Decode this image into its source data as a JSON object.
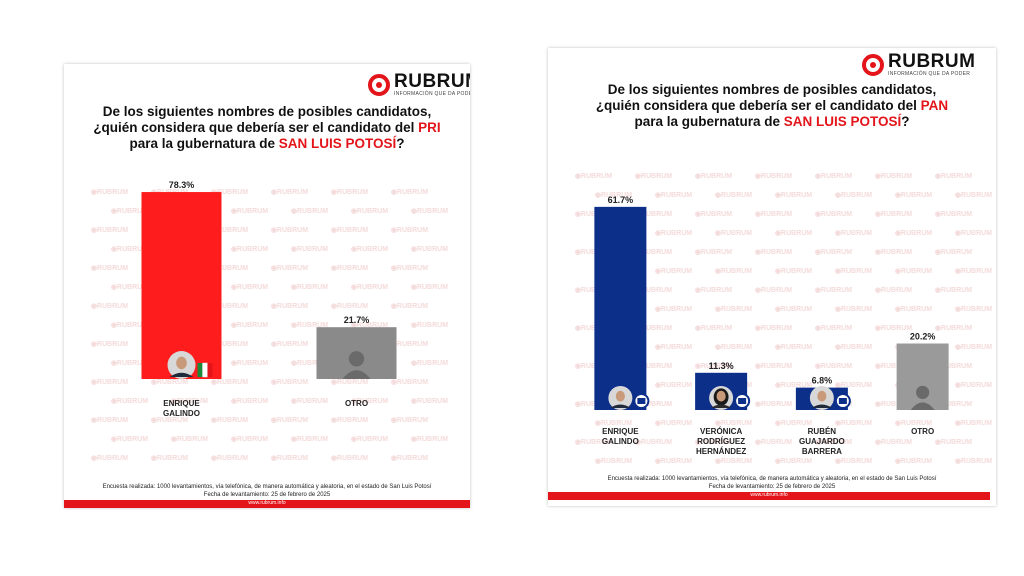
{
  "brand": {
    "name": "RUBRUM",
    "tagline": "INFORMACIÓN QUE DA PODER",
    "url": "www.rubrum.info"
  },
  "colors": {
    "brand_red": "#e3151a",
    "pri_bar": "#fe1c1c",
    "pan_bar": "#0c2f8a",
    "otro_bar": "#8a8a8a",
    "otro_bar_pan": "#9a9a9a"
  },
  "footer": {
    "survey": "Encuesta realizada: 1000 levantamientos, vía telefónica, de manera automática y aleatoria, en el estado de San Luis Potosí",
    "date": "Fecha de levantamiento: 25 de febrero de 2025"
  },
  "panels": [
    {
      "question": {
        "line1": "De los siguientes nombres de posibles candidatos,",
        "line2_prefix": "¿quién considera que debería ser el candidato del ",
        "party": "PRI",
        "line3_prefix": "para la gubernatura de ",
        "state": "SAN LUIS POTOSÍ",
        "line3_suffix": "?"
      },
      "chart_data": {
        "type": "bar",
        "ylim": [
          0,
          80
        ],
        "categories": [
          "ENRIQUE\nGALINDO",
          "OTRO"
        ],
        "values": [
          78.3,
          21.7
        ],
        "labels": [
          "78.3%",
          "21.7%"
        ],
        "colors": [
          "#fe1c1c",
          "#8a8a8a"
        ],
        "icons": [
          "photo",
          "silhouette"
        ],
        "party_logos": [
          "pri-logo-icon",
          ""
        ]
      }
    },
    {
      "question": {
        "line1": "De los siguientes nombres de posibles candidatos,",
        "line2_prefix": "¿quién considera que debería ser el candidato del ",
        "party": "PAN",
        "line3_prefix": "para la gubernatura de ",
        "state": "SAN LUIS POTOSÍ",
        "line3_suffix": "?"
      },
      "chart_data": {
        "type": "bar",
        "ylim": [
          0,
          65
        ],
        "categories": [
          "ENRIQUE\nGALINDO",
          "VERÓNICA\nRODRÍGUEZ\nHERNÁNDEZ",
          "RUBÉN\nGUAJARDO\nBARRERA",
          "OTRO"
        ],
        "values": [
          61.7,
          11.3,
          6.8,
          20.2
        ],
        "labels": [
          "61.7%",
          "11.3%",
          "6.8%",
          "20.2%"
        ],
        "colors": [
          "#0c2f8a",
          "#0c2f8a",
          "#0c2f8a",
          "#9a9a9a"
        ],
        "icons": [
          "photo",
          "photo-female",
          "photo",
          "silhouette"
        ],
        "party_logos": [
          "pan-logo-icon",
          "pan-logo-icon",
          "pan-logo-icon",
          ""
        ]
      }
    }
  ]
}
